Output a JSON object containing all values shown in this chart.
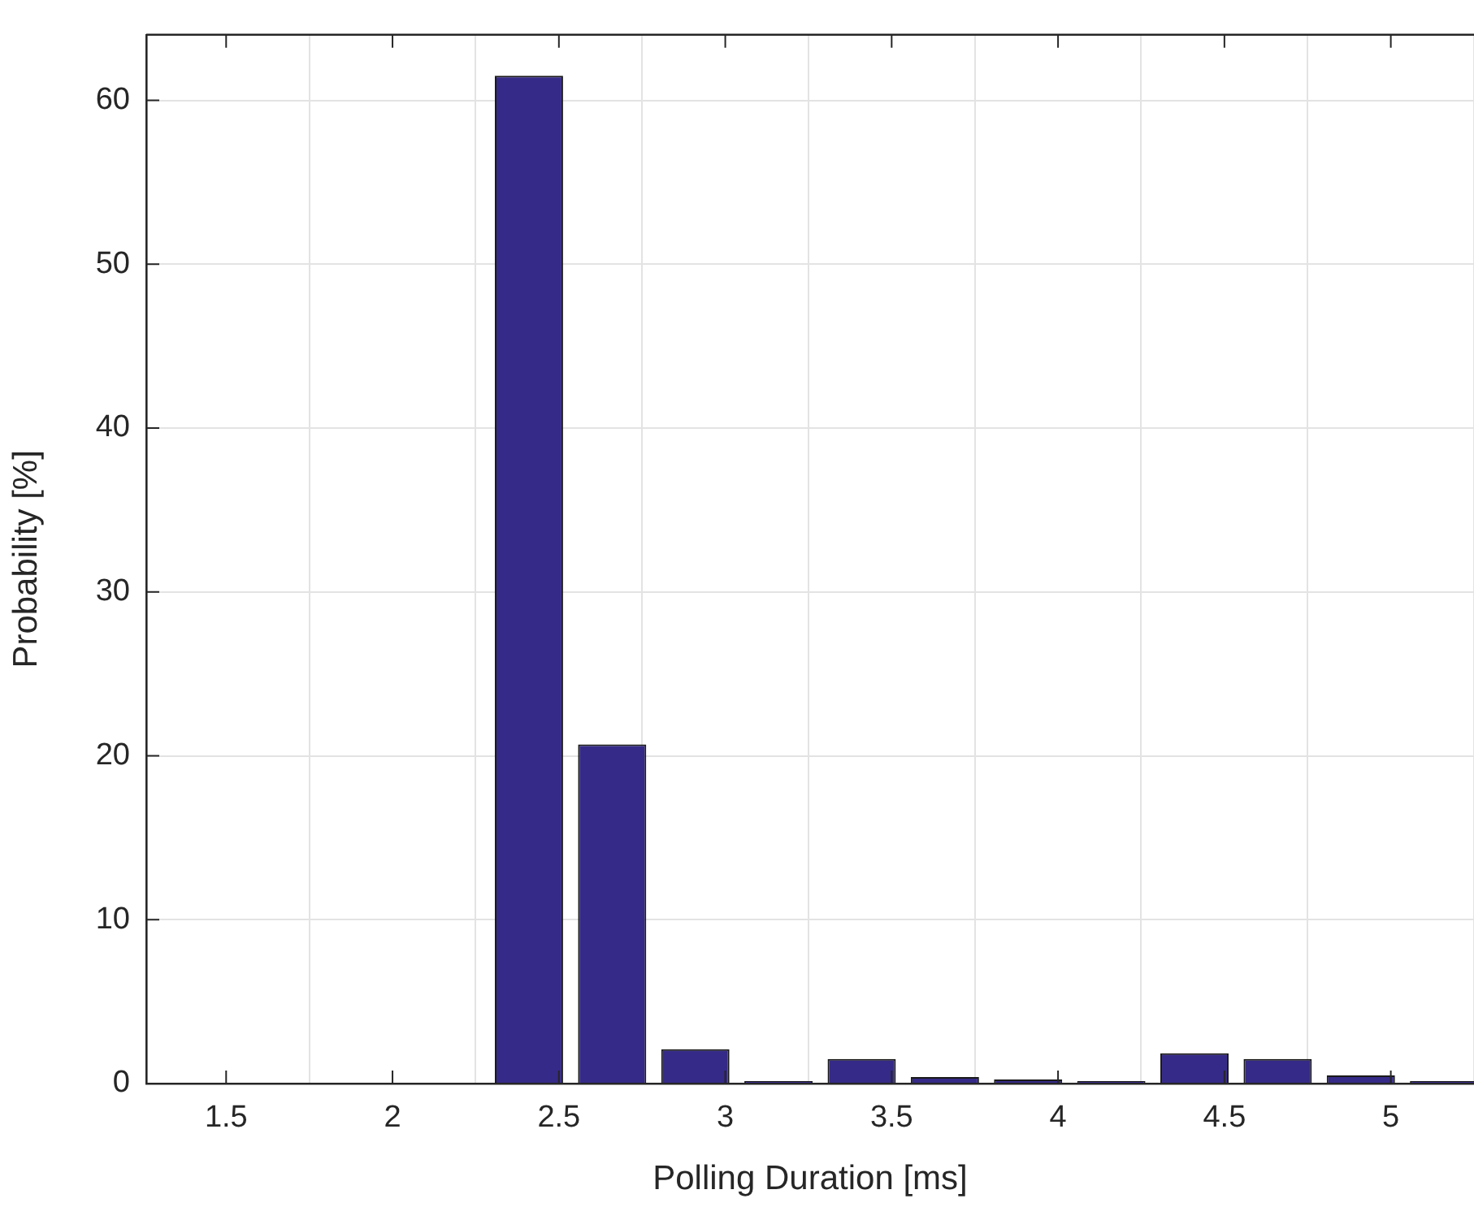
{
  "chart_data": {
    "type": "bar",
    "xlabel": "Polling Duration [ms]",
    "ylabel": "Probability [%]",
    "x": [
      2.41,
      2.66,
      2.91,
      3.16,
      3.41,
      3.66,
      3.91,
      4.16,
      4.41,
      4.66,
      4.91,
      5.16
    ],
    "series": [
      {
        "color": "#352a87",
        "values": [
          61.5,
          20.7,
          2.1,
          0.15,
          1.5,
          0.4,
          0.25,
          0.15,
          1.85,
          1.5,
          0.5,
          0.15
        ]
      }
    ],
    "xlim": [
      1.26,
      5.25
    ],
    "xticks": [
      1.5,
      2,
      2.5,
      3,
      3.5,
      4,
      4.5,
      5
    ],
    "ylim": [
      0,
      64
    ],
    "yticks": [
      0,
      10,
      20,
      30,
      40,
      50,
      60
    ],
    "grid": true,
    "legend": false
  }
}
